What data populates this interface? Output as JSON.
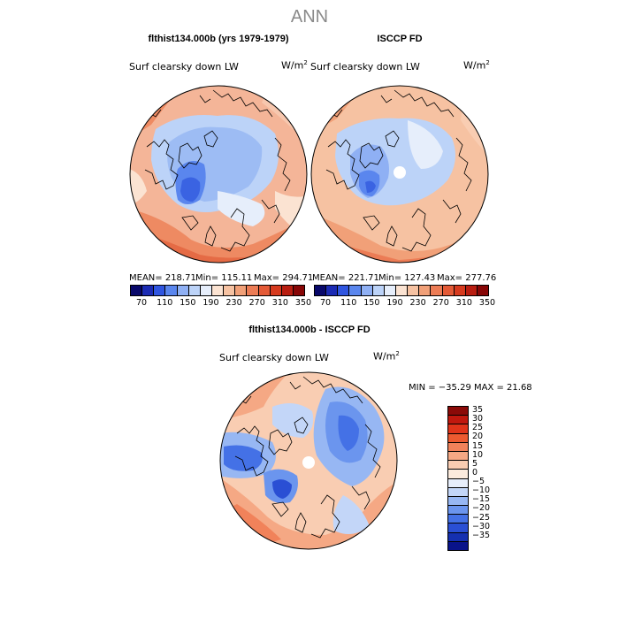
{
  "figure": {
    "title": "ANN",
    "top_left_title": "flthist134.000b (yrs 1979-1979)",
    "top_right_title": "ISCCP FD",
    "bottom_title": "flthist134.000b - ISCCP FD"
  },
  "panels": {
    "left": {
      "variable": "Surf clearsky down LW",
      "units": "W/m",
      "units_exp": "2",
      "mean_label": "MEAN= 218.71",
      "min_label": "Min= 115.11",
      "max_label": "Max= 294.71"
    },
    "right": {
      "variable": "Surf clearsky down LW",
      "units": "W/m",
      "units_exp": "2",
      "mean_label": "MEAN= 221.71",
      "min_label": "Min= 127.43",
      "max_label": "Max= 277.76"
    },
    "diff": {
      "variable": "Surf clearsky down LW",
      "units": "W/m",
      "units_exp": "2",
      "minmax_label": "MIN = −35.29  MAX =  21.68"
    }
  },
  "colorbar_abs": {
    "ticks": [
      "70",
      "110",
      "150",
      "190",
      "230",
      "270",
      "310",
      "350"
    ],
    "colors": [
      "#08086a",
      "#1b2bb4",
      "#2f55e0",
      "#5a86ee",
      "#8fb0f4",
      "#bcd3f8",
      "#e6eefb",
      "#fbe3d2",
      "#f6c2a2",
      "#f1a078",
      "#ec7c55",
      "#e45a36",
      "#d63a1e",
      "#b81d10",
      "#870606"
    ]
  },
  "colorbar_diff": {
    "ticks": [
      "35",
      "30",
      "25",
      "20",
      "15",
      "10",
      "5",
      "0",
      "−5",
      "−10",
      "−15",
      "−20",
      "−25",
      "−30",
      "−35"
    ],
    "colors": [
      "#8b0a08",
      "#c0180e",
      "#e0341a",
      "#ec5a30",
      "#f1825a",
      "#f5a884",
      "#f9cdb2",
      "#fcebdd",
      "#e7eefb",
      "#c3d6f8",
      "#97b7f3",
      "#6b95ee",
      "#4471e6",
      "#2a4fd4",
      "#1530b0",
      "#09138a"
    ]
  }
}
